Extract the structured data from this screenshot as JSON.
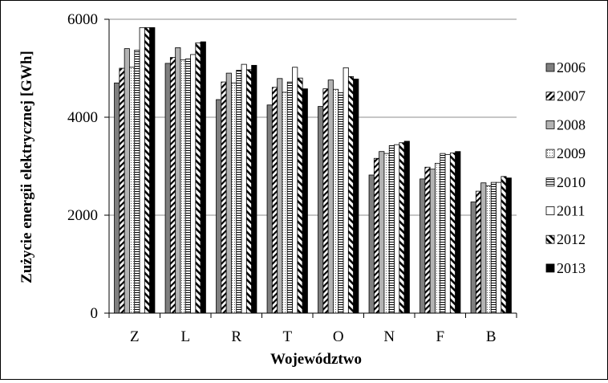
{
  "chart_data": {
    "type": "bar",
    "title": "",
    "xlabel": "Województwo",
    "ylabel": "Zużycie energii elektrycznej  [GWh]",
    "ylim": [
      0,
      6000
    ],
    "yticks": [
      "0",
      "2000",
      "4000",
      "6000"
    ],
    "grid": "horizontal",
    "legend_position": "right",
    "categories": [
      "Z",
      "L",
      "R",
      "T",
      "O",
      "N",
      "F",
      "B"
    ],
    "series": [
      {
        "name": "2006",
        "pattern": "solid-gray",
        "values": [
          4700,
          5100,
          4360,
          4250,
          4220,
          2820,
          2740,
          2270
        ]
      },
      {
        "name": "2007",
        "pattern": "diagonal-hatch",
        "values": [
          5000,
          5220,
          4720,
          4610,
          4580,
          3160,
          2980,
          2490
        ]
      },
      {
        "name": "2008",
        "pattern": "light-gray",
        "values": [
          5400,
          5420,
          4900,
          4790,
          4760,
          3300,
          2940,
          2660
        ]
      },
      {
        "name": "2009",
        "pattern": "dotted",
        "values": [
          5020,
          5170,
          4700,
          4510,
          4570,
          3260,
          3060,
          2600
        ]
      },
      {
        "name": "2010",
        "pattern": "horizontal-lines",
        "values": [
          5370,
          5190,
          4960,
          4720,
          4500,
          3420,
          3260,
          2670
        ]
      },
      {
        "name": "2011",
        "pattern": "white",
        "values": [
          5830,
          5280,
          5080,
          5020,
          5010,
          3440,
          3240,
          2670
        ]
      },
      {
        "name": "2012",
        "pattern": "wide-diagonal-hatch",
        "values": [
          5830,
          5520,
          4970,
          4800,
          4830,
          3480,
          3270,
          2790
        ]
      },
      {
        "name": "2013",
        "pattern": "solid-black",
        "values": [
          5830,
          5540,
          5060,
          4580,
          4780,
          3510,
          3300,
          2760
        ]
      }
    ]
  }
}
